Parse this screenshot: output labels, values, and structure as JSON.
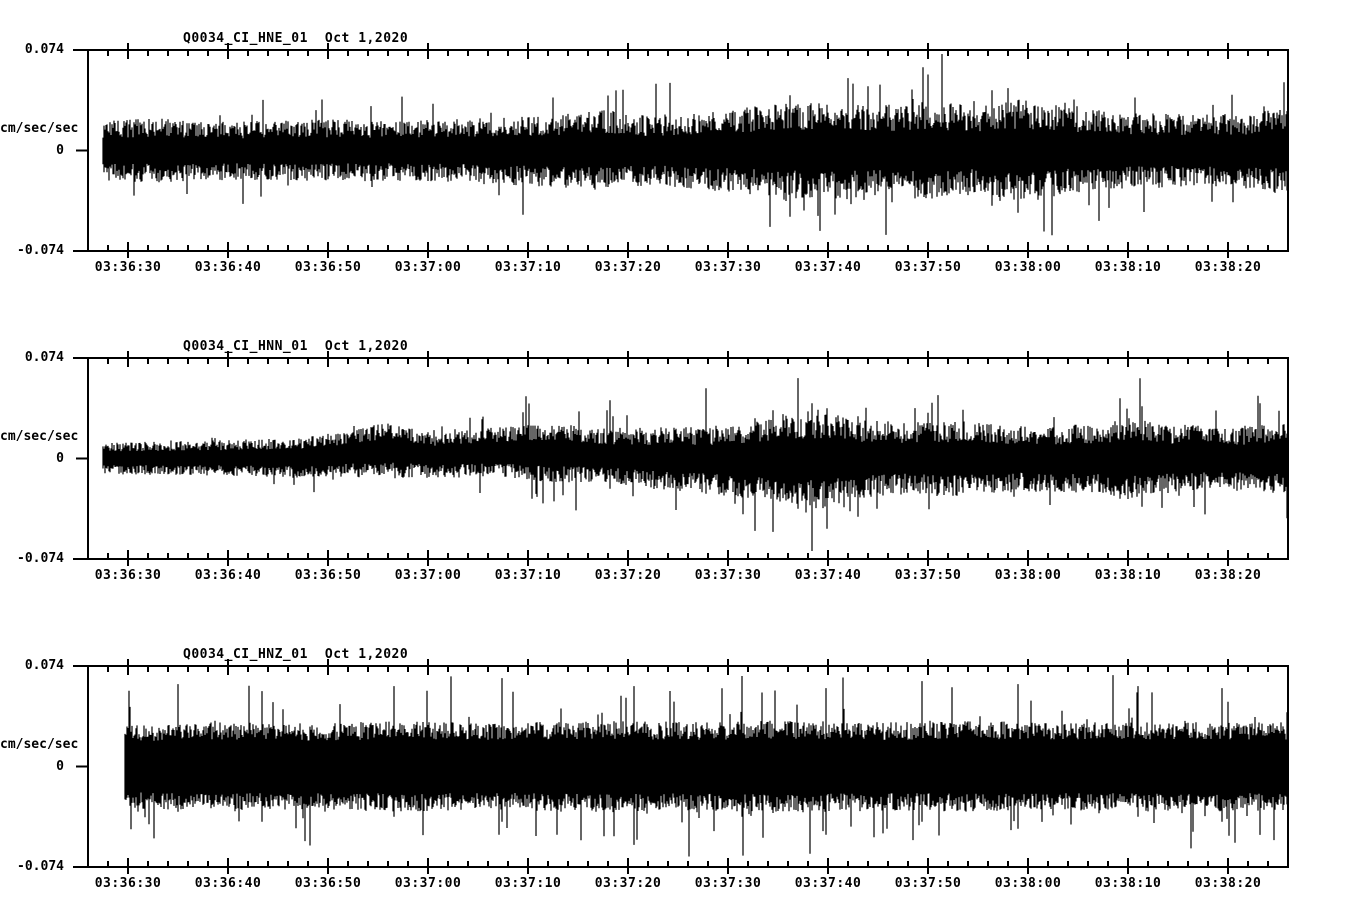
{
  "page": {
    "background": "#ffffff",
    "ink_color": "#000000"
  },
  "chart_data": {
    "type": "line",
    "kind": "seismogram-triptych",
    "grid": false,
    "legend": "none",
    "amplitude_axis": {
      "units_label": "cm/sec/sec",
      "tick_labels": [
        "0.074",
        "0",
        "-0.074"
      ],
      "tick_values": [
        0.074,
        0,
        -0.074
      ],
      "ylim": [
        -0.074,
        0.074
      ]
    },
    "time_axis": {
      "tick_labels": [
        "03:36:30",
        "03:36:40",
        "03:36:50",
        "03:37:00",
        "03:37:10",
        "03:37:20",
        "03:37:30",
        "03:37:40",
        "03:37:50",
        "03:38:00",
        "03:38:10",
        "03:38:20"
      ],
      "window_seconds": 120,
      "first_major_tick_offset_seconds": 4,
      "major_step_seconds": 10,
      "minor_step_seconds": 2
    },
    "plots": [
      {
        "title": "Q0034_CI_HNE_01",
        "date_label": "Oct 1,2020",
        "trace": {
          "seed": 7,
          "start_frac": 0.0125,
          "base": 0.42,
          "spike_prob": 0.07,
          "envelope": [
            [
              0.013,
              0.3
            ],
            [
              0.06,
              0.32
            ],
            [
              0.12,
              0.29
            ],
            [
              0.2,
              0.31
            ],
            [
              0.27,
              0.3
            ],
            [
              0.33,
              0.33
            ],
            [
              0.38,
              0.36
            ],
            [
              0.43,
              0.4
            ],
            [
              0.47,
              0.34
            ],
            [
              0.52,
              0.4
            ],
            [
              0.57,
              0.46
            ],
            [
              0.62,
              0.5
            ],
            [
              0.66,
              0.44
            ],
            [
              0.7,
              0.5
            ],
            [
              0.74,
              0.44
            ],
            [
              0.78,
              0.52
            ],
            [
              0.82,
              0.42
            ],
            [
              0.87,
              0.38
            ],
            [
              0.92,
              0.36
            ],
            [
              0.97,
              0.38
            ],
            [
              1.0,
              0.44
            ]
          ],
          "drift": [
            [
              0,
              0
            ],
            [
              1,
              0
            ]
          ],
          "spikes": [
            [
              0.568,
              0.32,
              -0.76
            ],
            [
              0.585,
              0.55,
              -0.66
            ],
            [
              0.61,
              0.42,
              -0.8
            ],
            [
              0.633,
              0.72,
              -0.38
            ],
            [
              0.665,
              0.45,
              -0.84
            ],
            [
              0.712,
              0.96,
              -0.45
            ],
            [
              0.753,
              0.6,
              -0.55
            ],
            [
              0.775,
              0.5,
              -0.62
            ],
            [
              0.997,
              0.68,
              -0.3
            ]
          ]
        }
      },
      {
        "title": "Q0034_CI_HNN_01",
        "date_label": "Oct 1,2020",
        "trace": {
          "seed": 13,
          "start_frac": 0.0125,
          "base": 0.42,
          "spike_prob": 0.07,
          "envelope": [
            [
              0.013,
              0.16
            ],
            [
              0.08,
              0.17
            ],
            [
              0.15,
              0.19
            ],
            [
              0.21,
              0.22
            ],
            [
              0.25,
              0.28
            ],
            [
              0.29,
              0.22
            ],
            [
              0.34,
              0.25
            ],
            [
              0.39,
              0.3
            ],
            [
              0.43,
              0.27
            ],
            [
              0.47,
              0.31
            ],
            [
              0.51,
              0.33
            ],
            [
              0.55,
              0.38
            ],
            [
              0.58,
              0.46
            ],
            [
              0.61,
              0.5
            ],
            [
              0.64,
              0.4
            ],
            [
              0.68,
              0.36
            ],
            [
              0.72,
              0.38
            ],
            [
              0.76,
              0.34
            ],
            [
              0.8,
              0.33
            ],
            [
              0.84,
              0.35
            ],
            [
              0.87,
              0.41
            ],
            [
              0.91,
              0.34
            ],
            [
              0.95,
              0.32
            ],
            [
              1.0,
              0.35
            ]
          ],
          "drift": [
            [
              0,
              0
            ],
            [
              0.18,
              0.01
            ],
            [
              0.25,
              0.08
            ],
            [
              0.29,
              0.03
            ],
            [
              0.34,
              0.06
            ],
            [
              0.4,
              0.05
            ],
            [
              0.46,
              0.01
            ],
            [
              0.55,
              -0.02
            ],
            [
              0.65,
              0
            ],
            [
              1,
              0
            ]
          ],
          "spikes": [
            [
              0.435,
              0.58,
              -0.3
            ],
            [
              0.515,
              0.7,
              -0.35
            ],
            [
              0.556,
              0.4,
              -0.72
            ],
            [
              0.571,
              0.48,
              -0.62
            ],
            [
              0.592,
              0.8,
              -0.5
            ],
            [
              0.603,
              0.55,
              -0.92
            ],
            [
              0.616,
              0.5,
              -0.7
            ],
            [
              0.642,
              0.42,
              -0.58
            ],
            [
              0.86,
              0.6,
              -0.4
            ],
            [
              0.878,
              0.52,
              -0.48
            ]
          ]
        }
      },
      {
        "title": "Q0034_CI_HNZ_01",
        "date_label": "Oct 1,2020",
        "trace": {
          "seed": 21,
          "start_frac": 0.031,
          "base": 0.6,
          "spike_prob": 0.1,
          "envelope": [
            [
              0.032,
              0.42
            ],
            [
              0.1,
              0.44
            ],
            [
              0.18,
              0.43
            ],
            [
              0.26,
              0.45
            ],
            [
              0.34,
              0.43
            ],
            [
              0.42,
              0.46
            ],
            [
              0.5,
              0.44
            ],
            [
              0.58,
              0.46
            ],
            [
              0.66,
              0.44
            ],
            [
              0.74,
              0.45
            ],
            [
              0.82,
              0.44
            ],
            [
              0.9,
              0.45
            ],
            [
              1.0,
              0.44
            ]
          ],
          "drift": [
            [
              0,
              0
            ],
            [
              1,
              0
            ]
          ],
          "spikes": [
            [
              0.075,
              0.82,
              -0.45
            ],
            [
              0.145,
              0.75,
              -0.55
            ],
            [
              0.255,
              0.8,
              -0.5
            ],
            [
              0.345,
              0.88,
              -0.55
            ],
            [
              0.455,
              0.8,
              -0.78
            ],
            [
              0.545,
              0.9,
              -0.5
            ],
            [
              0.615,
              0.78,
              -0.68
            ],
            [
              0.695,
              0.85,
              -0.55
            ],
            [
              0.775,
              0.82,
              -0.62
            ],
            [
              0.875,
              0.8,
              -0.5
            ],
            [
              0.945,
              0.78,
              -0.55
            ]
          ]
        }
      }
    ]
  }
}
